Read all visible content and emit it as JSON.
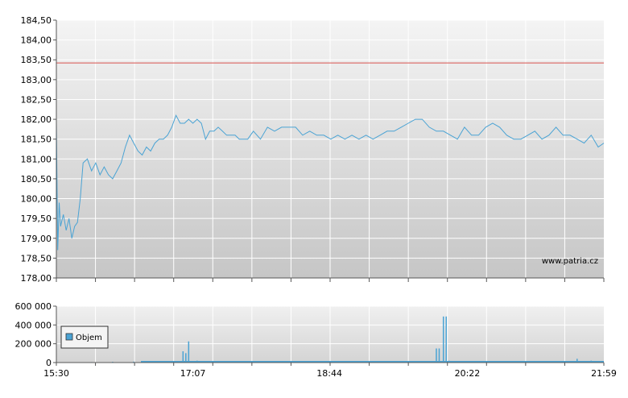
{
  "chart_data": [
    {
      "type": "line",
      "title": "",
      "xlabel": "",
      "ylabel": "",
      "ylim": [
        178.0,
        184.5
      ],
      "xlim": [
        "15:30",
        "21:59"
      ],
      "grid": true,
      "yticks": [
        "184,50",
        "184,00",
        "183,50",
        "183,00",
        "182,50",
        "182,00",
        "181,50",
        "181,00",
        "180,50",
        "180,00",
        "179,50",
        "179,00",
        "178,50",
        "178,00"
      ],
      "reference_line": {
        "value": 183.42,
        "color": "#d9534f"
      },
      "watermark": "www.patria.cz",
      "colors": {
        "line": "#4aa3d4",
        "plot_bg_top": "#f2f2f2",
        "plot_bg_bottom": "#c8c8c8",
        "grid": "#ffffff"
      },
      "series": [
        {
          "x": [
            "15:30",
            "15:31",
            "15:32",
            "15:33",
            "15:35",
            "15:37",
            "15:39",
            "15:41",
            "15:43",
            "15:45",
            "15:47",
            "15:49",
            "15:52",
            "15:55",
            "15:58",
            "16:01",
            "16:04",
            "16:07",
            "16:10",
            "16:13",
            "16:16",
            "16:19",
            "16:22",
            "16:25",
            "16:28",
            "16:31",
            "16:34",
            "16:37",
            "16:40",
            "16:43",
            "16:46",
            "16:49",
            "16:52",
            "16:55",
            "16:58",
            "17:01",
            "17:04",
            "17:07",
            "17:10",
            "17:13",
            "17:16",
            "17:19",
            "17:22",
            "17:25",
            "17:28",
            "17:31",
            "17:34",
            "17:37",
            "17:40",
            "17:43",
            "17:46",
            "17:50",
            "17:55",
            "18:00",
            "18:05",
            "18:10",
            "18:15",
            "18:20",
            "18:25",
            "18:30",
            "18:35",
            "18:40",
            "18:45",
            "18:50",
            "18:55",
            "19:00",
            "19:05",
            "19:10",
            "19:15",
            "19:20",
            "19:25",
            "19:30",
            "19:35",
            "19:40",
            "19:45",
            "19:50",
            "19:55",
            "20:00",
            "20:05",
            "20:10",
            "20:15",
            "20:20",
            "20:25",
            "20:30",
            "20:35",
            "20:40",
            "20:45",
            "20:50",
            "20:55",
            "21:00",
            "21:05",
            "21:10",
            "21:15",
            "21:20",
            "21:25",
            "21:30",
            "21:35",
            "21:40",
            "21:45",
            "21:50",
            "21:55",
            "21:59"
          ],
          "y": [
            181.9,
            178.7,
            179.9,
            179.3,
            179.6,
            179.2,
            179.5,
            179.0,
            179.3,
            179.4,
            180.0,
            180.9,
            181.0,
            180.7,
            180.9,
            180.6,
            180.8,
            180.6,
            180.5,
            180.7,
            180.9,
            181.3,
            181.6,
            181.4,
            181.2,
            181.1,
            181.3,
            181.2,
            181.4,
            181.5,
            181.5,
            181.6,
            181.8,
            182.1,
            181.9,
            181.9,
            182.0,
            181.9,
            182.0,
            181.9,
            181.5,
            181.7,
            181.7,
            181.8,
            181.7,
            181.6,
            181.6,
            181.6,
            181.5,
            181.5,
            181.5,
            181.7,
            181.5,
            181.8,
            181.7,
            181.8,
            181.8,
            181.8,
            181.6,
            181.7,
            181.6,
            181.6,
            181.5,
            181.6,
            181.5,
            181.6,
            181.5,
            181.6,
            181.5,
            181.6,
            181.7,
            181.7,
            181.8,
            181.9,
            182.0,
            182.0,
            181.8,
            181.7,
            181.7,
            181.6,
            181.5,
            181.8,
            181.6,
            181.6,
            181.8,
            181.9,
            181.8,
            181.6,
            181.5,
            181.5,
            181.6,
            181.7,
            181.5,
            181.6,
            181.8,
            181.6,
            181.6,
            181.5,
            181.4,
            181.6,
            181.3,
            181.4
          ]
        }
      ]
    },
    {
      "type": "bar",
      "title": "",
      "ylim": [
        0,
        600000
      ],
      "yticks": [
        "600 000",
        "400 000",
        "200 000",
        "0"
      ],
      "xticks": [
        "15:30",
        "17:07",
        "18:44",
        "20:22",
        "21:59"
      ],
      "legend": {
        "position": "left",
        "entries": [
          "Objem"
        ]
      },
      "series": [
        {
          "name": "Objem",
          "x": [
            "15:55",
            "16:10",
            "16:25",
            "16:40",
            "16:55",
            "17:00",
            "17:02",
            "17:04",
            "17:10",
            "17:30",
            "17:50",
            "18:10",
            "18:30",
            "18:50",
            "19:10",
            "19:30",
            "19:50",
            "20:00",
            "20:02",
            "20:05",
            "20:07",
            "20:09",
            "20:30",
            "20:50",
            "21:10",
            "21:30",
            "21:40",
            "21:50"
          ],
          "values": [
            5000,
            8000,
            10000,
            12000,
            15000,
            120000,
            100000,
            225000,
            20000,
            15000,
            12000,
            10000,
            10000,
            10000,
            8000,
            8000,
            10000,
            150000,
            150000,
            490000,
            490000,
            20000,
            10000,
            10000,
            15000,
            12000,
            40000,
            20000
          ]
        }
      ]
    }
  ]
}
